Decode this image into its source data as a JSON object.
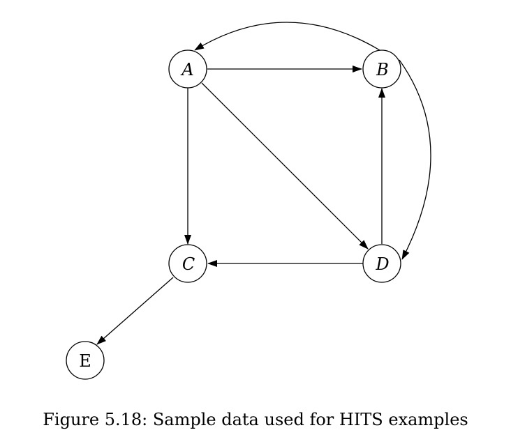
{
  "diagram": {
    "nodes": [
      {
        "id": "A",
        "label": "A",
        "italic": true
      },
      {
        "id": "B",
        "label": "B",
        "italic": true
      },
      {
        "id": "C",
        "label": "C",
        "italic": true
      },
      {
        "id": "D",
        "label": "D",
        "italic": true
      },
      {
        "id": "E",
        "label": "E",
        "italic": false
      }
    ],
    "edges": [
      {
        "from": "A",
        "to": "B"
      },
      {
        "from": "A",
        "to": "C"
      },
      {
        "from": "A",
        "to": "D"
      },
      {
        "from": "B",
        "to": "A"
      },
      {
        "from": "B",
        "to": "D"
      },
      {
        "from": "D",
        "to": "B"
      },
      {
        "from": "D",
        "to": "C"
      },
      {
        "from": "C",
        "to": "E"
      }
    ]
  },
  "caption": "Figure 5.18: Sample data used for HITS examples"
}
